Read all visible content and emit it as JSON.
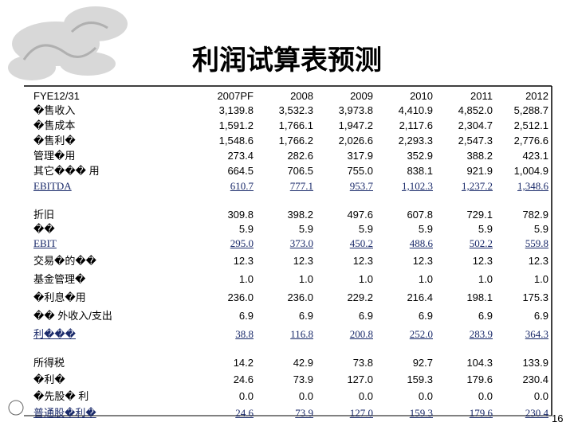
{
  "title": "利润试算表预测",
  "table": {
    "header": [
      "FYE12/31",
      "2007PF",
      "2008",
      "2009",
      "2010",
      "2011",
      "2012"
    ],
    "groups": [
      [
        [
          "�售收入",
          "3,139.8",
          "3,532.3",
          "3,973.8",
          "4,410.9",
          "4,852.0",
          "5,288.7"
        ],
        [
          "�售成本",
          "1,591.2",
          "1,766.1",
          "1,947.2",
          "2,117.6",
          "2,304.7",
          "2,512.1"
        ],
        [
          "�售利�",
          "1,548.6",
          "1,766.2",
          "2,026.6",
          "2,293.3",
          "2,547.3",
          "2,776.6"
        ],
        [
          "管理�用",
          "273.4",
          "282.6",
          "317.9",
          "352.9",
          "388.2",
          "423.1"
        ],
        [
          "其它��� 用",
          "664.5",
          "706.5",
          "755.0",
          "838.1",
          "921.9",
          "1,004.9"
        ],
        [
          "EBITDA",
          "610.7",
          "777.1",
          "953.7",
          "1,102.3",
          "1,237.2",
          "1,348.6"
        ]
      ],
      [
        [
          "折旧",
          "309.8",
          "398.2",
          "497.6",
          "607.8",
          "729.1",
          "782.9"
        ],
        [
          "��",
          "5.9",
          "5.9",
          "5.9",
          "5.9",
          "5.9",
          "5.9"
        ],
        [
          "EBIT",
          "295.0",
          "373.0",
          "450.2",
          "488.6",
          "502.2",
          "559.8"
        ]
      ],
      [
        [
          "交易�的��",
          "12.3",
          "12.3",
          "12.3",
          "12.3",
          "12.3",
          "12.3"
        ],
        [
          "基金管理�",
          "1.0",
          "1.0",
          "1.0",
          "1.0",
          "1.0",
          "1.0"
        ],
        [
          "�利息�用",
          "236.0",
          "236.0",
          "229.2",
          "216.4",
          "198.1",
          "175.3"
        ],
        [
          "�� 外收入/支出",
          "6.9",
          "6.9",
          "6.9",
          "6.9",
          "6.9",
          "6.9"
        ],
        [
          "利���",
          "38.8",
          "116.8",
          "200.8",
          "252.0",
          "283.9",
          "364.3"
        ]
      ],
      [
        [
          "所得税",
          "14.2",
          "42.9",
          "73.8",
          "92.7",
          "104.3",
          "133.9"
        ],
        [
          "�利�",
          "24.6",
          "73.9",
          "127.0",
          "159.3",
          "179.6",
          "230.4"
        ],
        [
          "�先股� 利",
          "0.0",
          "0.0",
          "0.0",
          "0.0",
          "0.0",
          "0.0"
        ],
        [
          "普通股�利�",
          "24.6",
          "73.9",
          "127.0",
          "159.3",
          "179.6",
          "230.4"
        ]
      ]
    ]
  },
  "page_number": "16"
}
